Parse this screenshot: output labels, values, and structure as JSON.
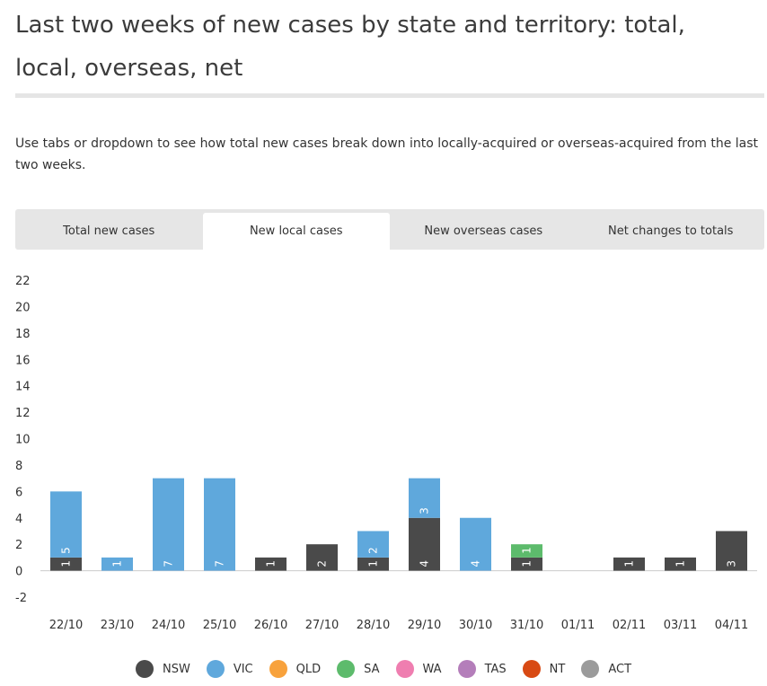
{
  "title": "Last two weeks of new cases by state and territory: total, local, overseas, net",
  "description": "Use tabs or dropdown to see how total new cases break down into locally-acquired or overseas-acquired from the last two weeks.",
  "tabs": [
    {
      "label": "Total new cases",
      "active": false
    },
    {
      "label": "New local cases",
      "active": true
    },
    {
      "label": "New overseas cases",
      "active": false
    },
    {
      "label": "Net changes to totals",
      "active": false
    }
  ],
  "chart_data": {
    "type": "bar",
    "stacked": true,
    "categories": [
      "22/10",
      "23/10",
      "24/10",
      "25/10",
      "26/10",
      "27/10",
      "28/10",
      "29/10",
      "30/10",
      "31/10",
      "01/11",
      "02/11",
      "03/11",
      "04/11"
    ],
    "series": [
      {
        "name": "NSW",
        "color": "#4a4a4a",
        "values": [
          1,
          0,
          0,
          0,
          1,
          2,
          1,
          4,
          0,
          1,
          0,
          1,
          1,
          3
        ]
      },
      {
        "name": "VIC",
        "color": "#5fa8dc",
        "values": [
          5,
          1,
          7,
          7,
          0,
          0,
          2,
          3,
          4,
          0,
          0,
          0,
          0,
          0
        ]
      },
      {
        "name": "QLD",
        "color": "#f8a23c",
        "values": [
          0,
          0,
          0,
          0,
          0,
          0,
          0,
          0,
          0,
          0,
          0,
          0,
          0,
          0
        ]
      },
      {
        "name": "SA",
        "color": "#5dbb6c",
        "values": [
          0,
          0,
          0,
          0,
          0,
          0,
          0,
          0,
          0,
          1,
          0,
          0,
          0,
          0
        ]
      },
      {
        "name": "WA",
        "color": "#ef7eb0",
        "values": [
          0,
          0,
          0,
          0,
          0,
          0,
          0,
          0,
          0,
          0,
          0,
          0,
          0,
          0
        ]
      },
      {
        "name": "TAS",
        "color": "#b47eba",
        "values": [
          0,
          0,
          0,
          0,
          0,
          0,
          0,
          0,
          0,
          0,
          0,
          0,
          0,
          0
        ]
      },
      {
        "name": "NT",
        "color": "#d84a14",
        "values": [
          0,
          0,
          0,
          0,
          0,
          0,
          0,
          0,
          0,
          0,
          0,
          0,
          0,
          0
        ]
      },
      {
        "name": "ACT",
        "color": "#9b9b9b",
        "values": [
          0,
          0,
          0,
          0,
          0,
          0,
          0,
          0,
          0,
          0,
          0,
          0,
          0,
          0
        ]
      }
    ],
    "yticks": [
      -2,
      0,
      2,
      4,
      6,
      8,
      10,
      12,
      14,
      16,
      18,
      20,
      22
    ],
    "ylim": [
      -2,
      22
    ],
    "grid": false,
    "legend_position": "bottom"
  }
}
